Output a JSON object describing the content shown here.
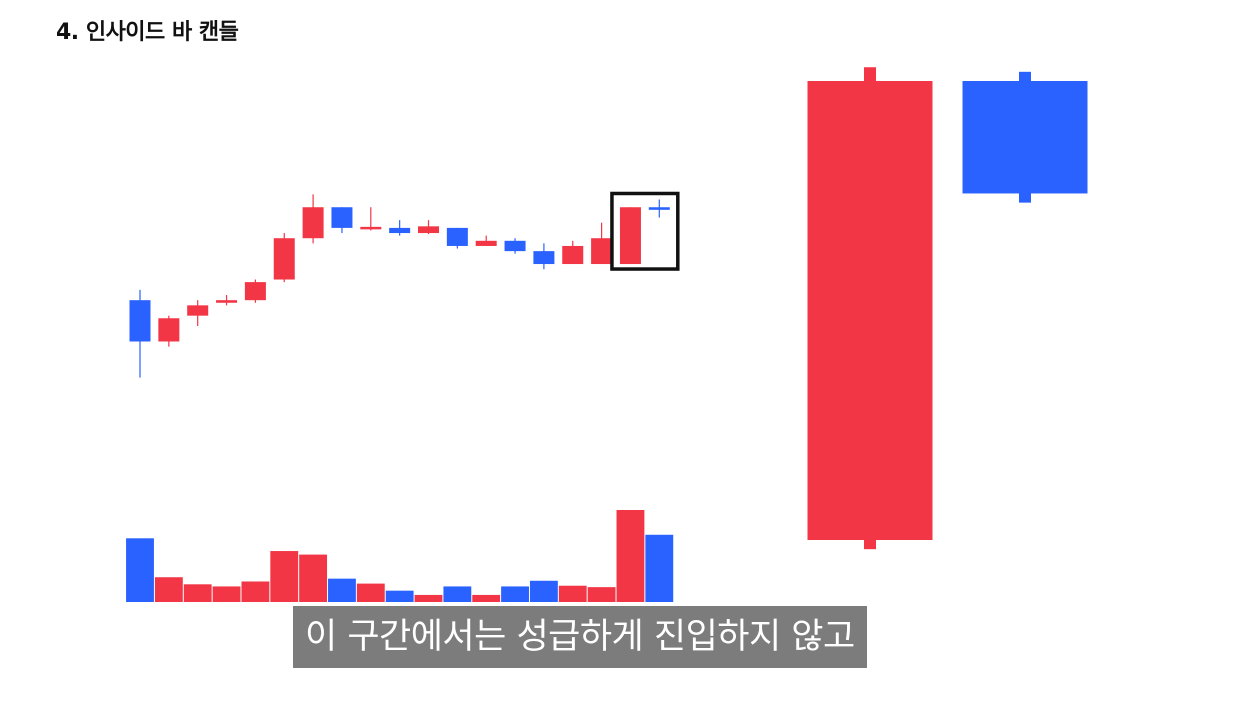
{
  "title": "4. 인사이드 바 캔들",
  "caption": "이 구간에서는 성급하게 진입하지 않고",
  "colors": {
    "up": "#f23645",
    "down": "#2962ff",
    "frame": "#111111"
  },
  "chart_data": {
    "type": "candlestick",
    "ylim": [
      0,
      110
    ],
    "candles": [
      {
        "open": 60,
        "close": 52,
        "high": 62,
        "low": 45
      },
      {
        "open": 52,
        "close": 56.5,
        "high": 57,
        "low": 51
      },
      {
        "open": 57,
        "close": 59,
        "high": 60,
        "low": 55
      },
      {
        "open": 59.5,
        "close": 60,
        "high": 61,
        "low": 59
      },
      {
        "open": 60,
        "close": 63.5,
        "high": 64,
        "low": 59.5
      },
      {
        "open": 64,
        "close": 72,
        "high": 73,
        "low": 63.5
      },
      {
        "open": 72,
        "close": 78,
        "high": 80.5,
        "low": 71
      },
      {
        "open": 78,
        "close": 74,
        "high": 78,
        "low": 73
      },
      {
        "open": 74,
        "close": 74.2,
        "high": 78,
        "low": 73.5
      },
      {
        "open": 74,
        "close": 73,
        "high": 75.5,
        "low": 72.5
      },
      {
        "open": 73,
        "close": 74.3,
        "high": 75.5,
        "low": 72.8
      },
      {
        "open": 74,
        "close": 70.5,
        "high": 74,
        "low": 70
      },
      {
        "open": 70.5,
        "close": 71.5,
        "high": 72.5,
        "low": 70.5
      },
      {
        "open": 71.5,
        "close": 69.5,
        "high": 72,
        "low": 69
      },
      {
        "open": 69.5,
        "close": 67,
        "high": 71,
        "low": 66
      },
      {
        "open": 67,
        "close": 70.5,
        "high": 71.5,
        "low": 67
      },
      {
        "open": 67,
        "close": 72,
        "high": 75,
        "low": 67
      },
      {
        "open": 67,
        "close": 78,
        "high": 78,
        "low": 67
      },
      {
        "open": 78,
        "close": 77.5,
        "high": 79.5,
        "low": 76
      }
    ],
    "volume": [
      9,
      3.5,
      2.5,
      2.2,
      2.9,
      7.2,
      6.7,
      3.3,
      2.6,
      1.6,
      1.0,
      2.2,
      1.0,
      2.2,
      3.0,
      2.3,
      2.1,
      13,
      9.5
    ],
    "highlight_last": 2,
    "zoom": [
      {
        "open": 0,
        "close": 100,
        "high": 103,
        "low": -2
      },
      {
        "open": 100,
        "close": 75.5,
        "high": 102,
        "low": 73.5
      }
    ]
  }
}
